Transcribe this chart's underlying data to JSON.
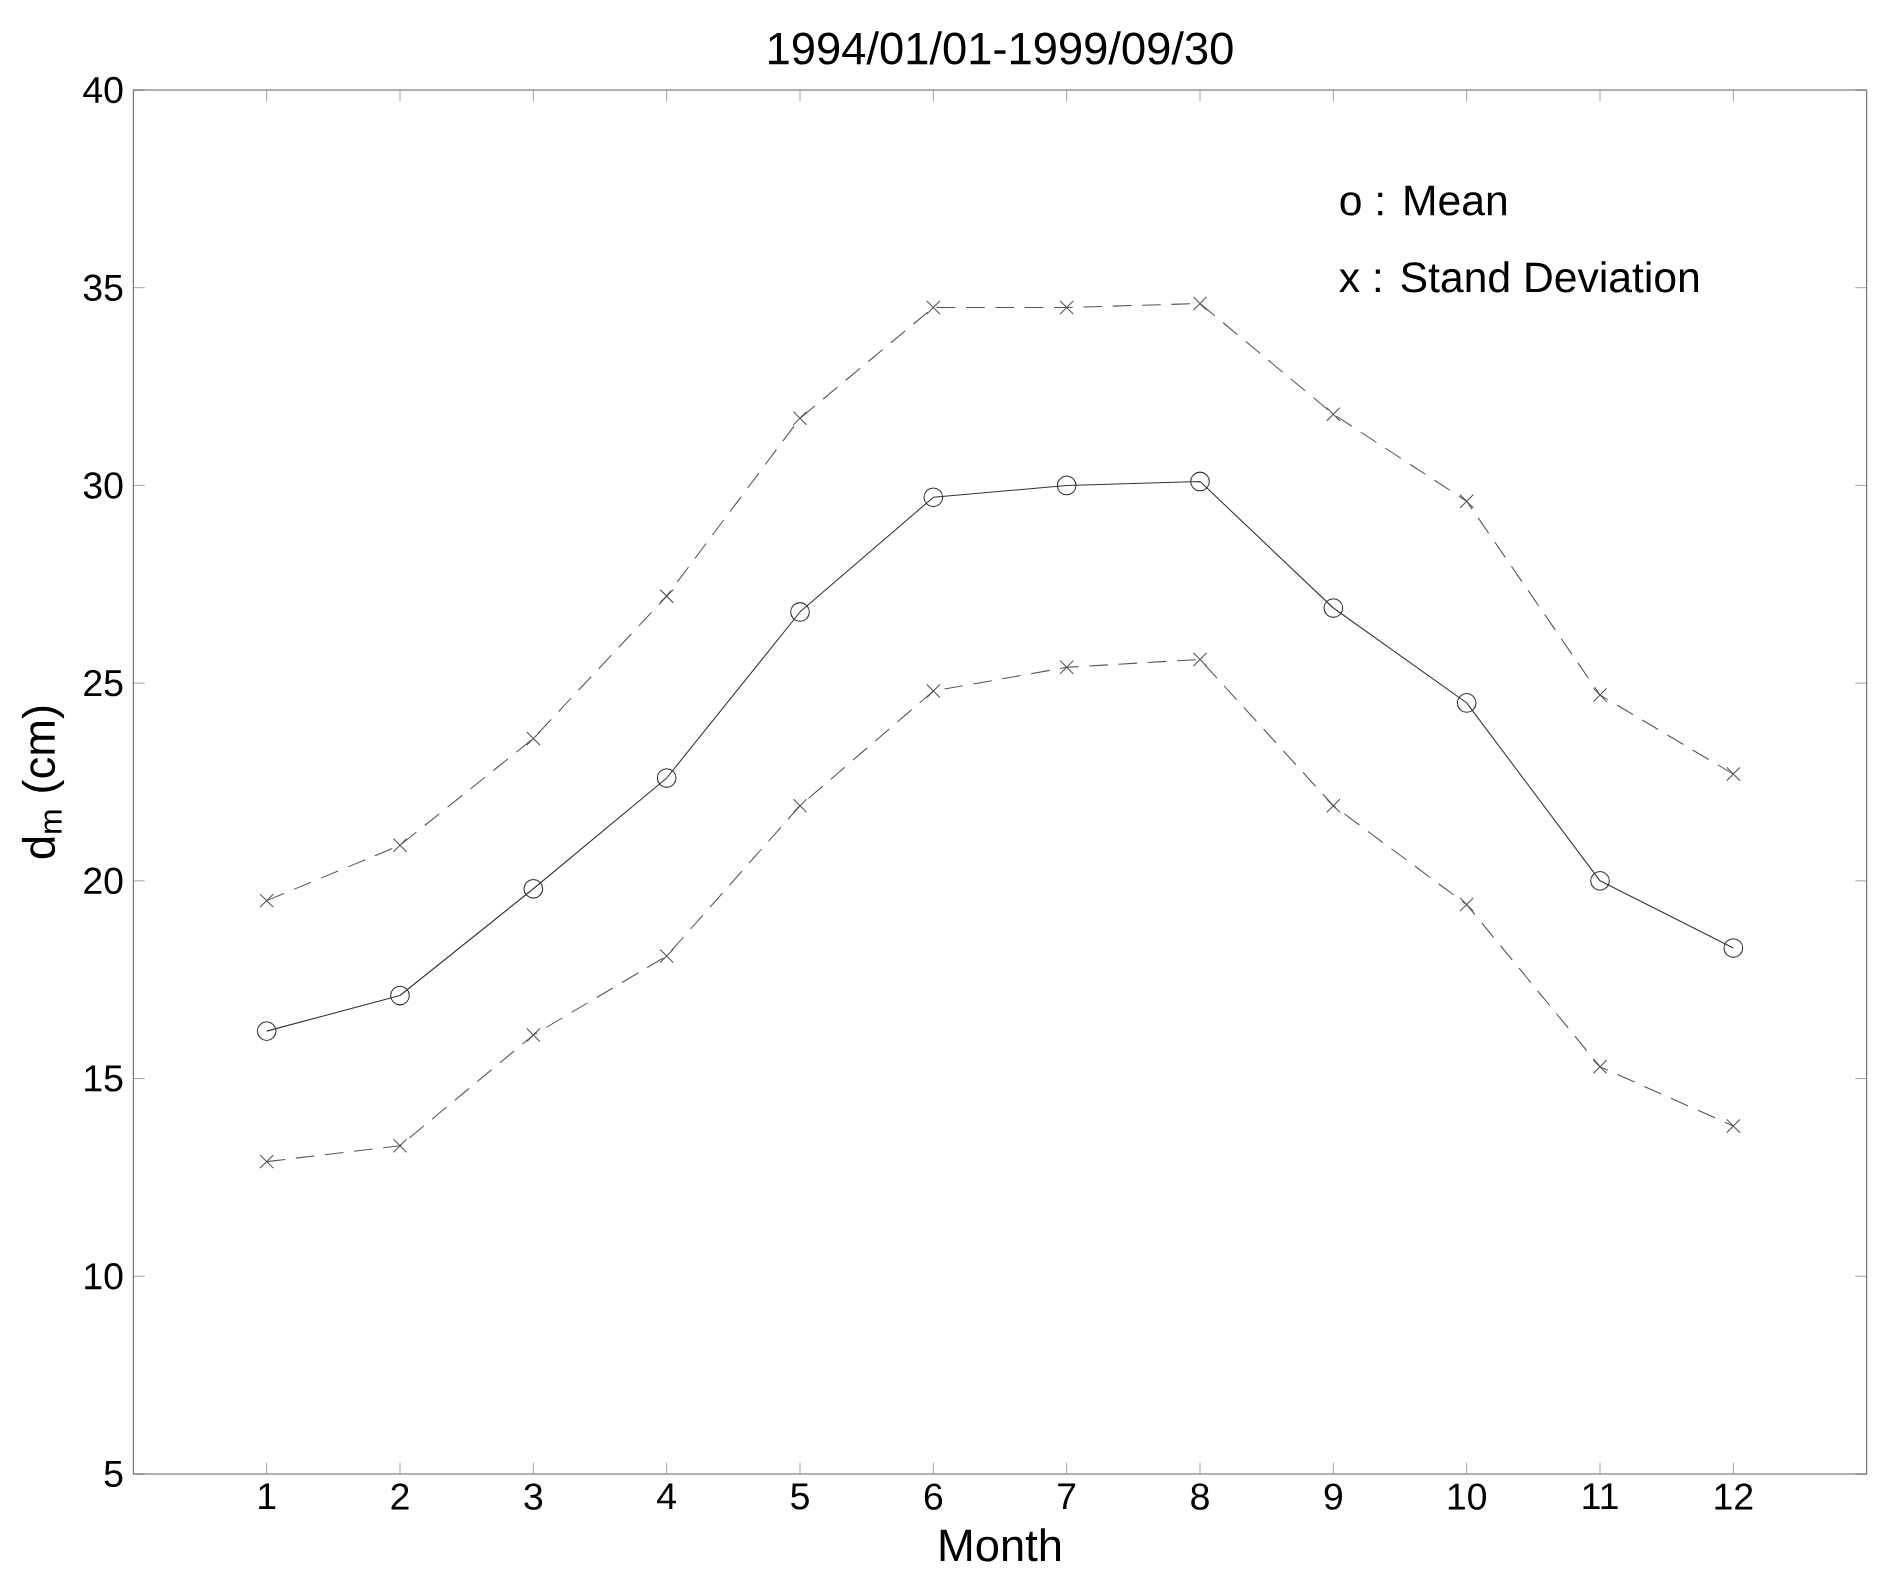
{
  "chart_data": {
    "type": "line",
    "title": "1994/01/01-1999/09/30",
    "xlabel": "Month",
    "ylabel": "d$_{m}$ (cm)",
    "x": [
      1,
      2,
      3,
      4,
      5,
      6,
      7,
      8,
      9,
      10,
      11,
      12
    ],
    "xlim": [
      0,
      13
    ],
    "xticks": [
      1,
      2,
      3,
      4,
      5,
      6,
      7,
      8,
      9,
      10,
      11,
      12
    ],
    "ylim": [
      5,
      40
    ],
    "yticks": [
      5,
      10,
      15,
      20,
      25,
      30,
      35,
      40
    ],
    "series": [
      {
        "color": "#555555",
        "line_style": "dashed",
        "marker": "cross",
        "values": [
          19.5,
          20.9,
          23.6,
          27.2,
          31.7,
          34.5,
          34.5,
          34.6,
          31.8,
          29.6,
          24.7,
          22.7
        ]
      },
      {
        "color": "#333333",
        "line_style": "solid",
        "marker": "circle",
        "values": [
          16.2,
          17.1,
          19.8,
          22.6,
          26.8,
          29.7,
          30.0,
          30.1,
          26.9,
          24.5,
          20.0,
          18.3
        ]
      },
      {
        "color": "#555555",
        "line_style": "dashed",
        "marker": "cross",
        "values": [
          12.9,
          13.3,
          16.1,
          18.1,
          21.9,
          24.8,
          25.4,
          25.6,
          21.9,
          19.4,
          15.3,
          13.8
        ]
      }
    ],
    "annotations": [
      "o : Mean",
      "x : Stand Deviation"
    ],
    "grid": false
  }
}
